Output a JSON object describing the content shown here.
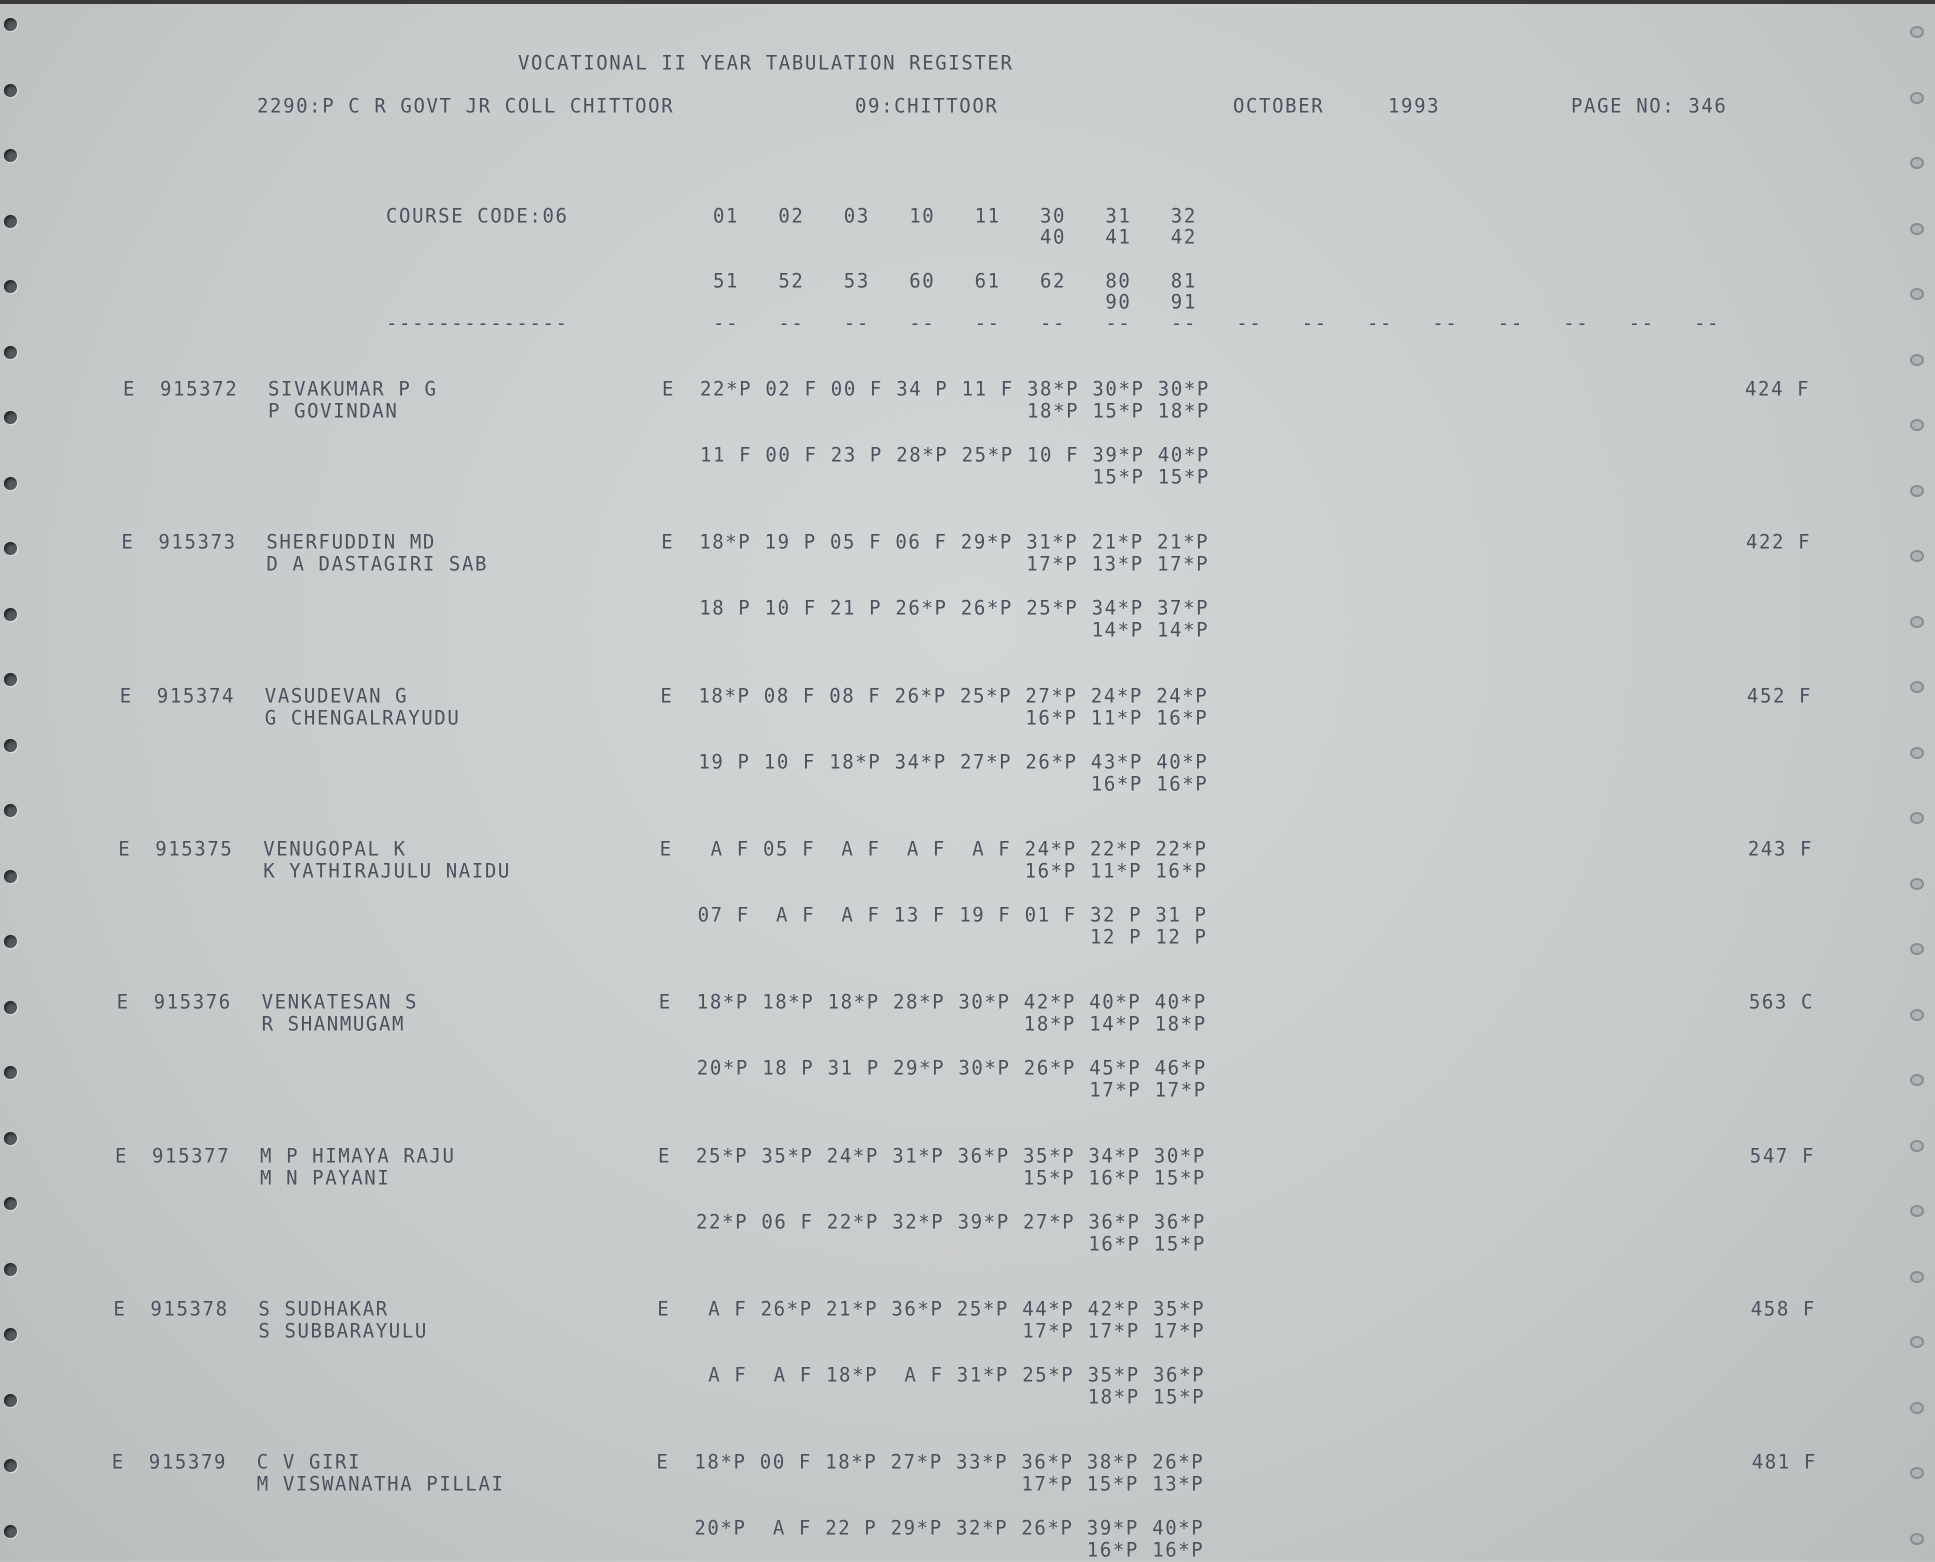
{
  "header": {
    "title": "VOCATIONAL II YEAR TABULATION REGISTER",
    "college": "2290:P C R GOVT JR COLL CHITTOOR",
    "district": "09:CHITTOOR",
    "month": "OCTOBER",
    "year": "1993",
    "page": "PAGE NO: 346"
  },
  "course": {
    "label": "COURSE CODE:06",
    "codes_row1": [
      "01",
      "02",
      "03",
      "10",
      "11",
      "30",
      "31",
      "32"
    ],
    "codes_row1_sub": [
      "40",
      "41",
      "42"
    ],
    "codes_row2": [
      "51",
      "52",
      "53",
      "60",
      "61",
      "62",
      "80",
      "81"
    ],
    "codes_row2_sub": [
      "90",
      "91"
    ],
    "label_rule": "--------------",
    "rule_segment": "--"
  },
  "records": [
    {
      "flag": "E",
      "roll": "915372",
      "name": "SIVAKUMAR P G",
      "father": "P GOVINDAN",
      "exam_flag": "E",
      "line1": [
        "22*P",
        "02 F",
        "00 F",
        "34 P",
        "11 F",
        "38*P",
        "30*P",
        "30*P"
      ],
      "line1_sub": [
        "18*P",
        "15*P",
        "18*P"
      ],
      "line2": [
        "11 F",
        "00 F",
        "23 P",
        "28*P",
        "25*P",
        "10 F",
        "39*P",
        "40*P"
      ],
      "line2_sub": [
        "15*P",
        "15*P"
      ],
      "total": "424 F"
    },
    {
      "flag": "E",
      "roll": "915373",
      "name": "SHERFUDDIN MD",
      "father": "D A DASTAGIRI SAB",
      "exam_flag": "E",
      "line1": [
        "18*P",
        "19 P",
        "05 F",
        "06 F",
        "29*P",
        "31*P",
        "21*P",
        "21*P"
      ],
      "line1_sub": [
        "17*P",
        "13*P",
        "17*P"
      ],
      "line2": [
        "18 P",
        "10 F",
        "21 P",
        "26*P",
        "26*P",
        "25*P",
        "34*P",
        "37*P"
      ],
      "line2_sub": [
        "14*P",
        "14*P"
      ],
      "total": "422 F"
    },
    {
      "flag": "E",
      "roll": "915374",
      "name": "VASUDEVAN G",
      "father": "G CHENGALRAYUDU",
      "exam_flag": "E",
      "line1": [
        "18*P",
        "08 F",
        "08 F",
        "26*P",
        "25*P",
        "27*P",
        "24*P",
        "24*P"
      ],
      "line1_sub": [
        "16*P",
        "11*P",
        "16*P"
      ],
      "line2": [
        "19 P",
        "10 F",
        "18*P",
        "34*P",
        "27*P",
        "26*P",
        "43*P",
        "40*P"
      ],
      "line2_sub": [
        "16*P",
        "16*P"
      ],
      "total": "452 F"
    },
    {
      "flag": "E",
      "roll": "915375",
      "name": "VENUGOPAL K",
      "father": "K YATHIRAJULU NAIDU",
      "exam_flag": "E",
      "line1": [
        " A F",
        "05 F",
        " A F",
        " A F",
        " A F",
        "24*P",
        "22*P",
        "22*P"
      ],
      "line1_sub": [
        "16*P",
        "11*P",
        "16*P"
      ],
      "line2": [
        "07 F",
        " A F",
        " A F",
        "13 F",
        "19 F",
        "01 F",
        "32 P",
        "31 P"
      ],
      "line2_sub": [
        "12 P",
        "12 P"
      ],
      "total": "243 F"
    },
    {
      "flag": "E",
      "roll": "915376",
      "name": "VENKATESAN S",
      "father": "R SHANMUGAM",
      "exam_flag": "E",
      "line1": [
        "18*P",
        "18*P",
        "18*P",
        "28*P",
        "30*P",
        "42*P",
        "40*P",
        "40*P"
      ],
      "line1_sub": [
        "18*P",
        "14*P",
        "18*P"
      ],
      "line2": [
        "20*P",
        "18 P",
        "31 P",
        "29*P",
        "30*P",
        "26*P",
        "45*P",
        "46*P"
      ],
      "line2_sub": [
        "17*P",
        "17*P"
      ],
      "total": "563 C"
    },
    {
      "flag": "E",
      "roll": "915377",
      "name": "M P HIMAYA RAJU",
      "father": "M N PAYANI",
      "exam_flag": "E",
      "line1": [
        "25*P",
        "35*P",
        "24*P",
        "31*P",
        "36*P",
        "35*P",
        "34*P",
        "30*P"
      ],
      "line1_sub": [
        "15*P",
        "16*P",
        "15*P"
      ],
      "line2": [
        "22*P",
        "06 F",
        "22*P",
        "32*P",
        "39*P",
        "27*P",
        "36*P",
        "36*P"
      ],
      "line2_sub": [
        "16*P",
        "15*P"
      ],
      "total": "547 F"
    },
    {
      "flag": "E",
      "roll": "915378",
      "name": "S SUDHAKAR",
      "father": "S SUBBARAYULU",
      "exam_flag": "E",
      "line1": [
        " A F",
        "26*P",
        "21*P",
        "36*P",
        "25*P",
        "44*P",
        "42*P",
        "35*P"
      ],
      "line1_sub": [
        "17*P",
        "17*P",
        "17*P"
      ],
      "line2": [
        " A F",
        " A F",
        "18*P",
        " A F",
        "31*P",
        "25*P",
        "35*P",
        "36*P"
      ],
      "line2_sub": [
        "18*P",
        "15*P"
      ],
      "total": "458 F"
    },
    {
      "flag": "E",
      "roll": "915379",
      "name": "C V GIRI",
      "father": "M VISWANATHA PILLAI",
      "exam_flag": "E",
      "line1": [
        "18*P",
        "00 F",
        "18*P",
        "27*P",
        "33*P",
        "36*P",
        "38*P",
        "26*P"
      ],
      "line1_sub": [
        "17*P",
        "15*P",
        "13*P"
      ],
      "line2": [
        "20*P",
        " A F",
        "22 P",
        "29*P",
        "32*P",
        "26*P",
        "39*P",
        "40*P"
      ],
      "line2_sub": [
        "16*P",
        "16*P"
      ],
      "total": "481 F"
    }
  ],
  "colors": {
    "paper": "#c9cccc",
    "ink": "#4d505e",
    "holes": "#555a5e"
  }
}
